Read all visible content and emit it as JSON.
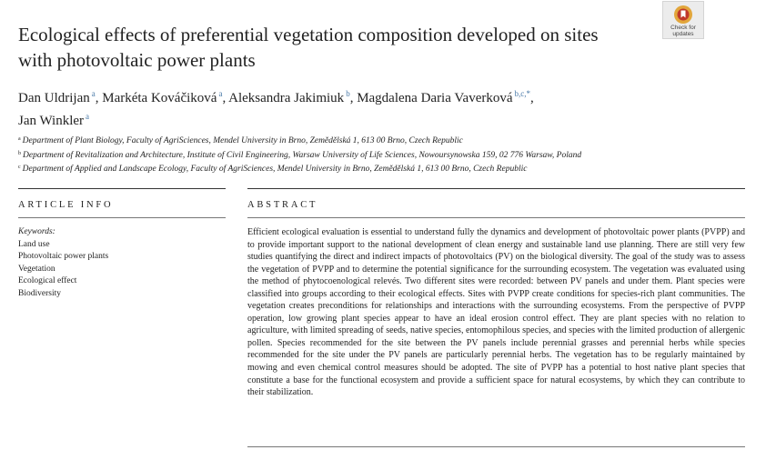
{
  "title": {
    "line1": "Ecological effects of preferential vegetation composition developed on sites",
    "line2": "with photovoltaic power plants"
  },
  "badge": {
    "line1": "Check for",
    "line2": "updates",
    "icon": "crossmark-icon",
    "colors": {
      "ring": "#e2a63b",
      "center": "#c0392b",
      "bookmark": "#ffffff"
    }
  },
  "authors": [
    {
      "name": "Dan Uldrijan",
      "sup": "a"
    },
    {
      "name": "Markéta Kováčiková",
      "sup": "a"
    },
    {
      "name": "Aleksandra Jakimiuk",
      "sup": "b"
    },
    {
      "name": "Magdalena Daria Vaverková",
      "sup": "b,c,*"
    },
    {
      "name": "Jan Winkler",
      "sup": "a"
    }
  ],
  "affiliations": [
    {
      "sup": "a",
      "text": "Department of Plant Biology, Faculty of AgriSciences, Mendel University in Brno, Zemědělská 1, 613 00 Brno, Czech Republic"
    },
    {
      "sup": "b",
      "text": "Department of Revitalization and Architecture, Institute of Civil Engineering, Warsaw University of Life Sciences, Nowoursynowska 159, 02 776 Warsaw, Poland"
    },
    {
      "sup": "c",
      "text": "Department of Applied and Landscape Ecology, Faculty of AgriSciences, Mendel University in Brno, Zemědělská 1, 613 00 Brno, Czech Republic"
    }
  ],
  "article_info": {
    "heading": "ARTICLE INFO",
    "keywords_label": "Keywords:",
    "keywords": [
      "Land use",
      "Photovoltaic power plants",
      "Vegetation",
      "Ecological effect",
      "Biodiversity"
    ]
  },
  "abstract": {
    "heading": "ABSTRACT",
    "text": "Efficient ecological evaluation is essential to understand fully the dynamics and development of photovoltaic power plants (PVPP) and to provide important support to the national development of clean energy and sus­tainable land use planning. There are still very few studies quantifying the direct and indirect impacts of pho­tovoltaics (PV) on the biological diversity. The goal of the study was to assess the vegetation of PVPP and to determine the potential significance for the surrounding ecosystem. The vegetation was evaluated using the method of phytocoenological relevés. Two different sites were recorded: between PV panels and under them. Plant species were classified into groups according to their ecological effects. Sites with PVPP create conditions for species-rich plant communities. The vegetation creates preconditions for relationships and interactions with the surrounding ecosystems. From the perspective of PVPP operation, low growing plant species appear to have an ideal erosion control effect. They are plant species with no relation to agriculture, with limited spreading of seeds, native species, entomophilous species, and species with the limited production of allergenic pollen. Species recommended for the site between the PV panels include perennial grasses and perennial herbs while species recommended for the site under the PV panels are particularly perennial herbs. The vegetation has to be regularly maintained by mowing and even chemical control measures should be adopted. The site of PVPP has a potential to host native plant species that constitute a base for the functional ecosystem and provide a sufficient space for natural ecosystems, by which they can contribute to their stabilization."
  }
}
